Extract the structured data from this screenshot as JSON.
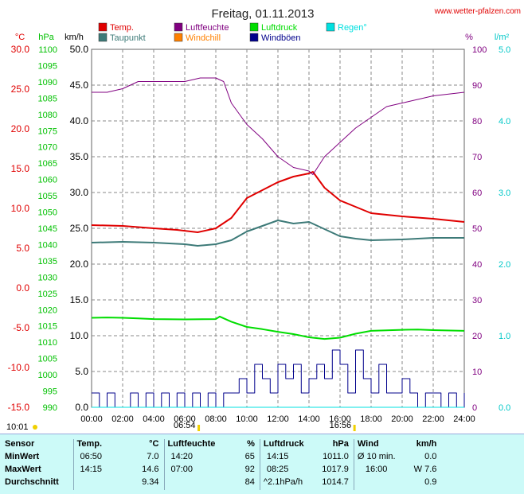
{
  "header": {
    "title": "Freitag, 01.11.2013",
    "source": "www.wetter-pfalzen.com"
  },
  "colors": {
    "temp": "#e00000",
    "dewpoint": "#3d7a78",
    "humidity": "#800080",
    "windchill": "#ff8000",
    "pressure": "#00dd00",
    "gusts": "#00008b",
    "rain": "#00e0e0",
    "grid": "#888888"
  },
  "chart_data": {
    "type": "line",
    "x_ticks": [
      "00:00",
      "02:00",
      "04:00",
      "06:00",
      "08:00",
      "10:00",
      "12:00",
      "14:00",
      "16:00",
      "18:00",
      "20:00",
      "22:00",
      "24:00"
    ],
    "x_range": [
      0,
      24
    ],
    "legend": [
      {
        "name": "Temp.",
        "key": "temp"
      },
      {
        "name": "Taupunkt",
        "key": "dewpoint"
      },
      {
        "name": "Luftfeuchte",
        "key": "humidity"
      },
      {
        "name": "Windchill",
        "key": "windchill"
      },
      {
        "name": "Luftdruck",
        "key": "pressure"
      },
      {
        "name": "Windböen",
        "key": "gusts"
      },
      {
        "name": "Regen°",
        "key": "rain"
      }
    ],
    "axes": {
      "temp": {
        "unit": "°C",
        "range": [
          -15,
          30
        ],
        "ticks": [
          "30.0",
          "25.0",
          "20.0",
          "15.0",
          "10.0",
          "5.0",
          "0.0",
          "-5.0",
          "-10.0",
          "-15.0"
        ]
      },
      "pressure": {
        "unit": "hPa",
        "range": [
          990,
          1100
        ],
        "ticks": [
          "1100",
          "1095",
          "1090",
          "1085",
          "1080",
          "1075",
          "1070",
          "1065",
          "1060",
          "1055",
          "1050",
          "1045",
          "1040",
          "1035",
          "1030",
          "1025",
          "1020",
          "1015",
          "1010",
          "1005",
          "1000",
          "995",
          "990"
        ]
      },
      "wind": {
        "unit": "km/h",
        "range": [
          0,
          50
        ],
        "ticks": [
          "50.0",
          "45.0",
          "40.0",
          "35.0",
          "30.0",
          "25.0",
          "20.0",
          "15.0",
          "10.0",
          "5.0",
          "0.0"
        ]
      },
      "humidity": {
        "unit": "%",
        "range": [
          0,
          100
        ],
        "ticks": [
          "100",
          "90",
          "80",
          "70",
          "60",
          "50",
          "40",
          "30",
          "20",
          "10",
          "0"
        ]
      },
      "rain": {
        "unit": "l/m²",
        "range": [
          0,
          5
        ],
        "ticks": [
          "5.0",
          "4.0",
          "3.0",
          "2.0",
          "1.0",
          "0.0"
        ]
      }
    },
    "series": [
      {
        "name": "Temp.",
        "key": "temp",
        "axis": "temp",
        "x": [
          0,
          2,
          4,
          5.5,
          6.83,
          8,
          9,
          10,
          11,
          12,
          13,
          14,
          14.25,
          15,
          16,
          17,
          18,
          20,
          22,
          24
        ],
        "y": [
          7.9,
          7.8,
          7.5,
          7.3,
          7.0,
          7.5,
          8.8,
          11.3,
          12.3,
          13.3,
          14.0,
          14.4,
          14.6,
          12.6,
          11.0,
          10.2,
          9.4,
          9.0,
          8.7,
          8.3
        ]
      },
      {
        "name": "Taupunkt",
        "key": "dewpoint",
        "axis": "temp",
        "x": [
          0,
          2,
          4,
          6,
          6.83,
          8,
          9,
          10,
          11,
          12,
          13,
          14,
          15,
          16,
          17,
          18,
          20,
          22,
          24
        ],
        "y": [
          5.7,
          5.8,
          5.7,
          5.5,
          5.3,
          5.5,
          6.0,
          7.1,
          7.8,
          8.5,
          8.1,
          8.3,
          7.4,
          6.5,
          6.2,
          6.0,
          6.1,
          6.3,
          6.3
        ]
      },
      {
        "name": "Luftfeuchte",
        "key": "humidity",
        "axis": "humidity",
        "x": [
          0,
          1,
          2,
          3,
          4,
          6,
          7,
          8,
          8.5,
          9,
          10,
          11,
          12,
          13,
          14,
          14.25,
          15,
          16,
          17,
          18,
          19,
          20,
          22,
          24
        ],
        "y": [
          88,
          88,
          89,
          91,
          91,
          91,
          92,
          92,
          91,
          85,
          79,
          75,
          70,
          67,
          66,
          65,
          70,
          74,
          78,
          81,
          84,
          85,
          87,
          88
        ]
      },
      {
        "name": "Luftdruck",
        "key": "pressure",
        "axis": "pressure",
        "x": [
          0,
          1,
          2,
          3,
          4,
          6,
          8,
          8.25,
          9,
          10,
          11,
          12,
          13,
          14,
          15,
          16,
          17,
          18,
          20,
          21,
          22,
          24
        ],
        "y": [
          1017.5,
          1017.6,
          1017.5,
          1017.3,
          1017.1,
          1017.0,
          1017.1,
          1017.9,
          1016.3,
          1014.7,
          1014.0,
          1013.2,
          1012.5,
          1011.5,
          1011.0,
          1011.4,
          1012.6,
          1013.5,
          1013.8,
          1013.9,
          1013.7,
          1013.5
        ]
      },
      {
        "name": "Windböen",
        "key": "gusts",
        "axis": "wind",
        "x": [
          0,
          0.5,
          1,
          1.5,
          2,
          2.5,
          3,
          3.5,
          4,
          4.5,
          5,
          5.5,
          6,
          6.5,
          7,
          7.5,
          8,
          8.5,
          9,
          9.5,
          10,
          10.5,
          11,
          11.5,
          12,
          12.5,
          13,
          13.5,
          14,
          14.5,
          15,
          15.5,
          16,
          16.5,
          17,
          17.5,
          18,
          18.5,
          19,
          19.5,
          20,
          20.5,
          21,
          21.5,
          22,
          22.5,
          23,
          23.5,
          24
        ],
        "y": [
          2,
          0,
          2,
          0,
          0,
          2,
          0,
          2,
          0,
          2,
          0,
          2,
          0,
          2,
          0,
          2,
          0,
          2,
          2,
          4,
          2,
          6,
          4,
          2,
          6,
          4,
          6,
          2,
          4,
          6,
          4,
          8,
          6,
          2,
          8,
          4,
          2,
          6,
          2,
          2,
          4,
          2,
          0,
          2,
          2,
          0,
          2,
          0,
          2
        ]
      },
      {
        "name": "Regen°",
        "key": "rain",
        "axis": "rain",
        "x": [
          0,
          24
        ],
        "y": [
          0,
          0
        ]
      }
    ],
    "markers": [
      {
        "label": "10:01",
        "hour": 0
      },
      {
        "label": "06:54",
        "hour": 6.9
      },
      {
        "label": "16:56",
        "hour": 16.93
      }
    ]
  },
  "stats": {
    "headers": {
      "sensor": "Sensor",
      "temp": "Temp.",
      "temp_unit": "°C",
      "hum": "Luftfeuchte",
      "hum_unit": "%",
      "pres": "Luftdruck",
      "pres_unit": "hPa",
      "wind": "Wind",
      "wind_unit": "km/h"
    },
    "rows": [
      {
        "label": "MinWert",
        "t_time": "06:50",
        "t_val": "7.0",
        "h_time": "14:20",
        "h_val": "65",
        "p_time": "14:15",
        "p_val": "1011.0",
        "w_time": "Ø 10 min.",
        "w_val": "0.0"
      },
      {
        "label": "MaxWert",
        "t_time": "14:15",
        "t_val": "14.6",
        "h_time": "07:00",
        "h_val": "92",
        "p_time": "08:25",
        "p_val": "1017.9",
        "w_time": "16:00",
        "w_val": "W 7.6"
      },
      {
        "label": "Durchschnitt",
        "t_time": "",
        "t_val": "9.34",
        "h_time": "",
        "h_val": "84",
        "p_time": "^2.1hPa/h",
        "p_val": "1014.7",
        "w_time": "",
        "w_val": "0.9"
      }
    ]
  }
}
